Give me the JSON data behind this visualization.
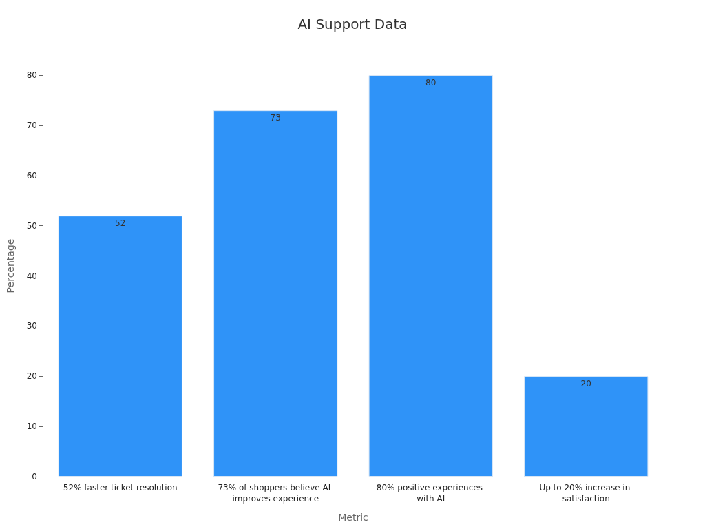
{
  "chart_data": {
    "type": "bar",
    "title": "AI Support Data",
    "xlabel": "Metric",
    "ylabel": "Percentage",
    "categories": [
      "52% faster ticket resolution",
      "73% of shoppers believe AI improves experience",
      "80% positive experiences with AI",
      "Up to 20% increase in satisfaction"
    ],
    "values": [
      52,
      73,
      80,
      20
    ],
    "color": "#2f93f8",
    "data_labels": true,
    "ylim": [
      0,
      84
    ],
    "yticks": [
      0,
      10,
      20,
      30,
      40,
      50,
      60,
      70,
      80
    ]
  }
}
